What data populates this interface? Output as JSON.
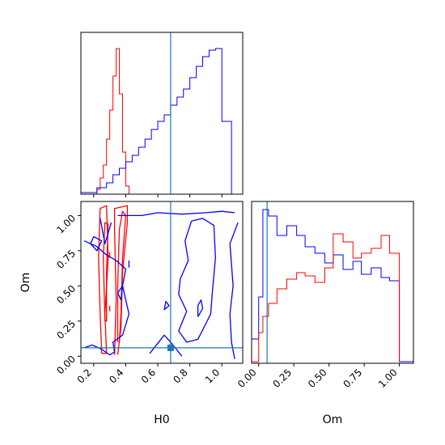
{
  "chart_data": [
    {
      "panel": "H0 marginal",
      "type": "histogram",
      "xlim": [
        0.12,
        1.13
      ],
      "ylim": [
        0,
        1.0
      ],
      "truth": 0.68,
      "series": [
        {
          "color": "#ff0000",
          "bin_edges": [
            0.22,
            0.24,
            0.26,
            0.28,
            0.3,
            0.32,
            0.34,
            0.36,
            0.38,
            0.4,
            0.42
          ],
          "heights": [
            0.03,
            0.1,
            0.18,
            0.34,
            0.52,
            0.73,
            0.9,
            0.62,
            0.26,
            0.05
          ]
        },
        {
          "color": "#0000ff",
          "bin_edges": [
            0.12,
            0.22,
            0.28,
            0.32,
            0.36,
            0.4,
            0.44,
            0.48,
            0.52,
            0.56,
            0.6,
            0.64,
            0.68,
            0.72,
            0.76,
            0.8,
            0.84,
            0.88,
            0.92,
            0.96,
            1.0,
            1.06
          ],
          "heights": [
            0.01,
            0.04,
            0.07,
            0.12,
            0.16,
            0.2,
            0.24,
            0.29,
            0.34,
            0.4,
            0.45,
            0.49,
            0.55,
            0.6,
            0.65,
            0.72,
            0.79,
            0.85,
            0.89,
            0.9,
            0.45
          ]
        }
      ]
    },
    {
      "panel": "Om marginal",
      "type": "histogram",
      "xlim": [
        -0.05,
        1.1
      ],
      "ylim": [
        0,
        1.0
      ],
      "truth": 0.06,
      "series": [
        {
          "color": "#0000ff",
          "bin_edges": [
            -0.05,
            0.0,
            0.03,
            0.07,
            0.13,
            0.2,
            0.27,
            0.33,
            0.4,
            0.47,
            0.53,
            0.6,
            0.67,
            0.73,
            0.8,
            0.87,
            0.93,
            1.0,
            1.1
          ],
          "heights": [
            0.15,
            0.41,
            0.95,
            0.91,
            0.79,
            0.85,
            0.79,
            0.72,
            0.68,
            0.62,
            0.67,
            0.58,
            0.63,
            0.55,
            0.59,
            0.53,
            0.51,
            0.01
          ]
        },
        {
          "color": "#ff0000",
          "bin_edges": [
            -0.05,
            0.0,
            0.03,
            0.07,
            0.13,
            0.2,
            0.27,
            0.33,
            0.4,
            0.47,
            0.53,
            0.6,
            0.67,
            0.73,
            0.8,
            0.87,
            0.93,
            1.0
          ],
          "heights": [
            0.01,
            0.19,
            0.29,
            0.37,
            0.46,
            0.52,
            0.56,
            0.54,
            0.5,
            0.59,
            0.8,
            0.75,
            0.65,
            0.68,
            0.71,
            0.79,
            0.68,
            0.01
          ]
        }
      ]
    },
    {
      "panel": "Om vs H0 joint",
      "type": "contour",
      "xlabel": "H0",
      "ylabel": "Om",
      "xlim": [
        0.12,
        1.13
      ],
      "ylim": [
        -0.05,
        1.1
      ],
      "xticks": [
        0.2,
        0.4,
        0.6,
        0.8,
        1.0
      ],
      "xtick_labels": [
        "0.2",
        "0.4",
        "0.6",
        "0.8",
        "1.0"
      ],
      "yticks": [
        0.0,
        0.25,
        0.5,
        0.75,
        1.0
      ],
      "ytick_labels": [
        "0.00",
        "0.25",
        "0.50",
        "0.75",
        "1.00"
      ],
      "truth": [
        0.68,
        0.06
      ],
      "contours": [
        {
          "color": "#ff0000",
          "points": [
            [
              0.25,
              0.02
            ],
            [
              0.24,
              0.3
            ],
            [
              0.23,
              0.7
            ],
            [
              0.24,
              1.05
            ],
            [
              0.28,
              1.07
            ],
            [
              0.29,
              0.7
            ],
            [
              0.27,
              0.3
            ],
            [
              0.28,
              0.02
            ],
            [
              0.25,
              0.02
            ]
          ]
        },
        {
          "color": "#ff0000",
          "points": [
            [
              0.27,
              0.25
            ],
            [
              0.26,
              0.7
            ],
            [
              0.27,
              0.95
            ],
            [
              0.29,
              0.94
            ],
            [
              0.28,
              0.6
            ],
            [
              0.28,
              0.25
            ],
            [
              0.27,
              0.25
            ]
          ]
        },
        {
          "color": "#ff0000",
          "points": [
            [
              0.33,
              0.01
            ],
            [
              0.34,
              0.4
            ],
            [
              0.33,
              0.9
            ],
            [
              0.33,
              1.05
            ],
            [
              0.41,
              1.07
            ],
            [
              0.41,
              0.95
            ],
            [
              0.38,
              0.6
            ],
            [
              0.37,
              0.2
            ],
            [
              0.35,
              0.01
            ]
          ]
        },
        {
          "color": "#ff0000",
          "points": [
            [
              0.35,
              0.1
            ],
            [
              0.35,
              0.5
            ],
            [
              0.36,
              0.9
            ],
            [
              0.38,
              1.03
            ],
            [
              0.4,
              1.0
            ],
            [
              0.38,
              0.7
            ],
            [
              0.37,
              0.3
            ],
            [
              0.36,
              0.1
            ]
          ]
        },
        {
          "color": "#ff0000",
          "points": [
            [
              0.3,
              0.74
            ],
            [
              0.3,
              0.7
            ]
          ]
        },
        {
          "color": "#ff0000",
          "points": [
            [
              0.3,
              0.36
            ],
            [
              0.3,
              0.32
            ]
          ]
        },
        {
          "color": "#0000ff",
          "points": [
            [
              0.14,
              0.06
            ],
            [
              0.19,
              0.08
            ],
            [
              0.25,
              0.05
            ],
            [
              0.3,
              0.01
            ],
            [
              0.33,
              0.03
            ],
            [
              0.32,
              0.1
            ],
            [
              0.38,
              0.15
            ],
            [
              0.42,
              0.3
            ],
            [
              0.38,
              0.5
            ],
            [
              0.4,
              0.62
            ],
            [
              0.34,
              0.68
            ],
            [
              0.28,
              0.72
            ],
            [
              0.22,
              0.78
            ],
            [
              0.14,
              0.82
            ]
          ]
        },
        {
          "color": "#0000ff",
          "points": [
            [
              0.35,
              1.0
            ],
            [
              0.5,
              1.0
            ],
            [
              0.6,
              1.02
            ],
            [
              0.75,
              1.01
            ],
            [
              0.9,
              1.02
            ],
            [
              1.0,
              1.03
            ],
            [
              1.08,
              1.02
            ]
          ]
        },
        {
          "color": "#0000ff",
          "points": [
            [
              1.1,
              0.95
            ],
            [
              1.05,
              0.8
            ],
            [
              1.07,
              0.5
            ],
            [
              1.05,
              0.3
            ],
            [
              1.06,
              0.1
            ],
            [
              1.08,
              -0.02
            ]
          ]
        },
        {
          "color": "#0000ff",
          "points": [
            [
              0.55,
              0.02
            ],
            [
              0.64,
              0.15
            ],
            [
              0.68,
              0.1
            ],
            [
              0.75,
              0.0
            ]
          ]
        },
        {
          "color": "#0000ff",
          "points": [
            [
              0.24,
              0.98
            ],
            [
              0.27,
              0.8
            ],
            [
              0.31,
              0.95
            ]
          ]
        },
        {
          "color": "#0000ff",
          "points": [
            [
              0.18,
              0.8
            ],
            [
              0.22,
              0.75
            ],
            [
              0.25,
              0.82
            ],
            [
              0.2,
              0.85
            ],
            [
              0.18,
              0.8
            ]
          ]
        },
        {
          "color": "#0000ff",
          "points": [
            [
              0.81,
              0.96
            ],
            [
              0.88,
              0.98
            ],
            [
              0.95,
              0.93
            ],
            [
              0.96,
              0.7
            ],
            [
              0.94,
              0.45
            ],
            [
              0.93,
              0.3
            ],
            [
              0.85,
              0.12
            ],
            [
              0.78,
              0.1
            ],
            [
              0.73,
              0.18
            ],
            [
              0.78,
              0.32
            ],
            [
              0.73,
              0.44
            ],
            [
              0.74,
              0.55
            ],
            [
              0.79,
              0.68
            ],
            [
              0.77,
              0.82
            ],
            [
              0.81,
              0.96
            ]
          ]
        },
        {
          "color": "#0000ff",
          "points": [
            [
              0.85,
              0.28
            ],
            [
              0.88,
              0.34
            ],
            [
              0.87,
              0.4
            ],
            [
              0.85,
              0.36
            ],
            [
              0.85,
              0.28
            ]
          ]
        },
        {
          "color": "#0000ff",
          "points": [
            [
              0.35,
              0.45
            ],
            [
              0.38,
              0.5
            ],
            [
              0.37,
              0.4
            ],
            [
              0.35,
              0.45
            ]
          ]
        },
        {
          "color": "#0000ff",
          "points": [
            [
              0.64,
              0.33
            ],
            [
              0.67,
              0.36
            ],
            [
              0.65,
              0.39
            ],
            [
              0.64,
              0.33
            ]
          ]
        },
        {
          "color": "#0000ff",
          "points": [
            [
              0.42,
              0.68
            ],
            [
              0.42,
              0.63
            ]
          ]
        }
      ]
    },
    {
      "panel": "Om marginal axis",
      "xlabel": "Om",
      "xticks": [
        0.0,
        0.25,
        0.5,
        0.75,
        1.0
      ],
      "xtick_labels": [
        "0.00",
        "0.25",
        "0.50",
        "0.75",
        "1.00"
      ]
    }
  ]
}
